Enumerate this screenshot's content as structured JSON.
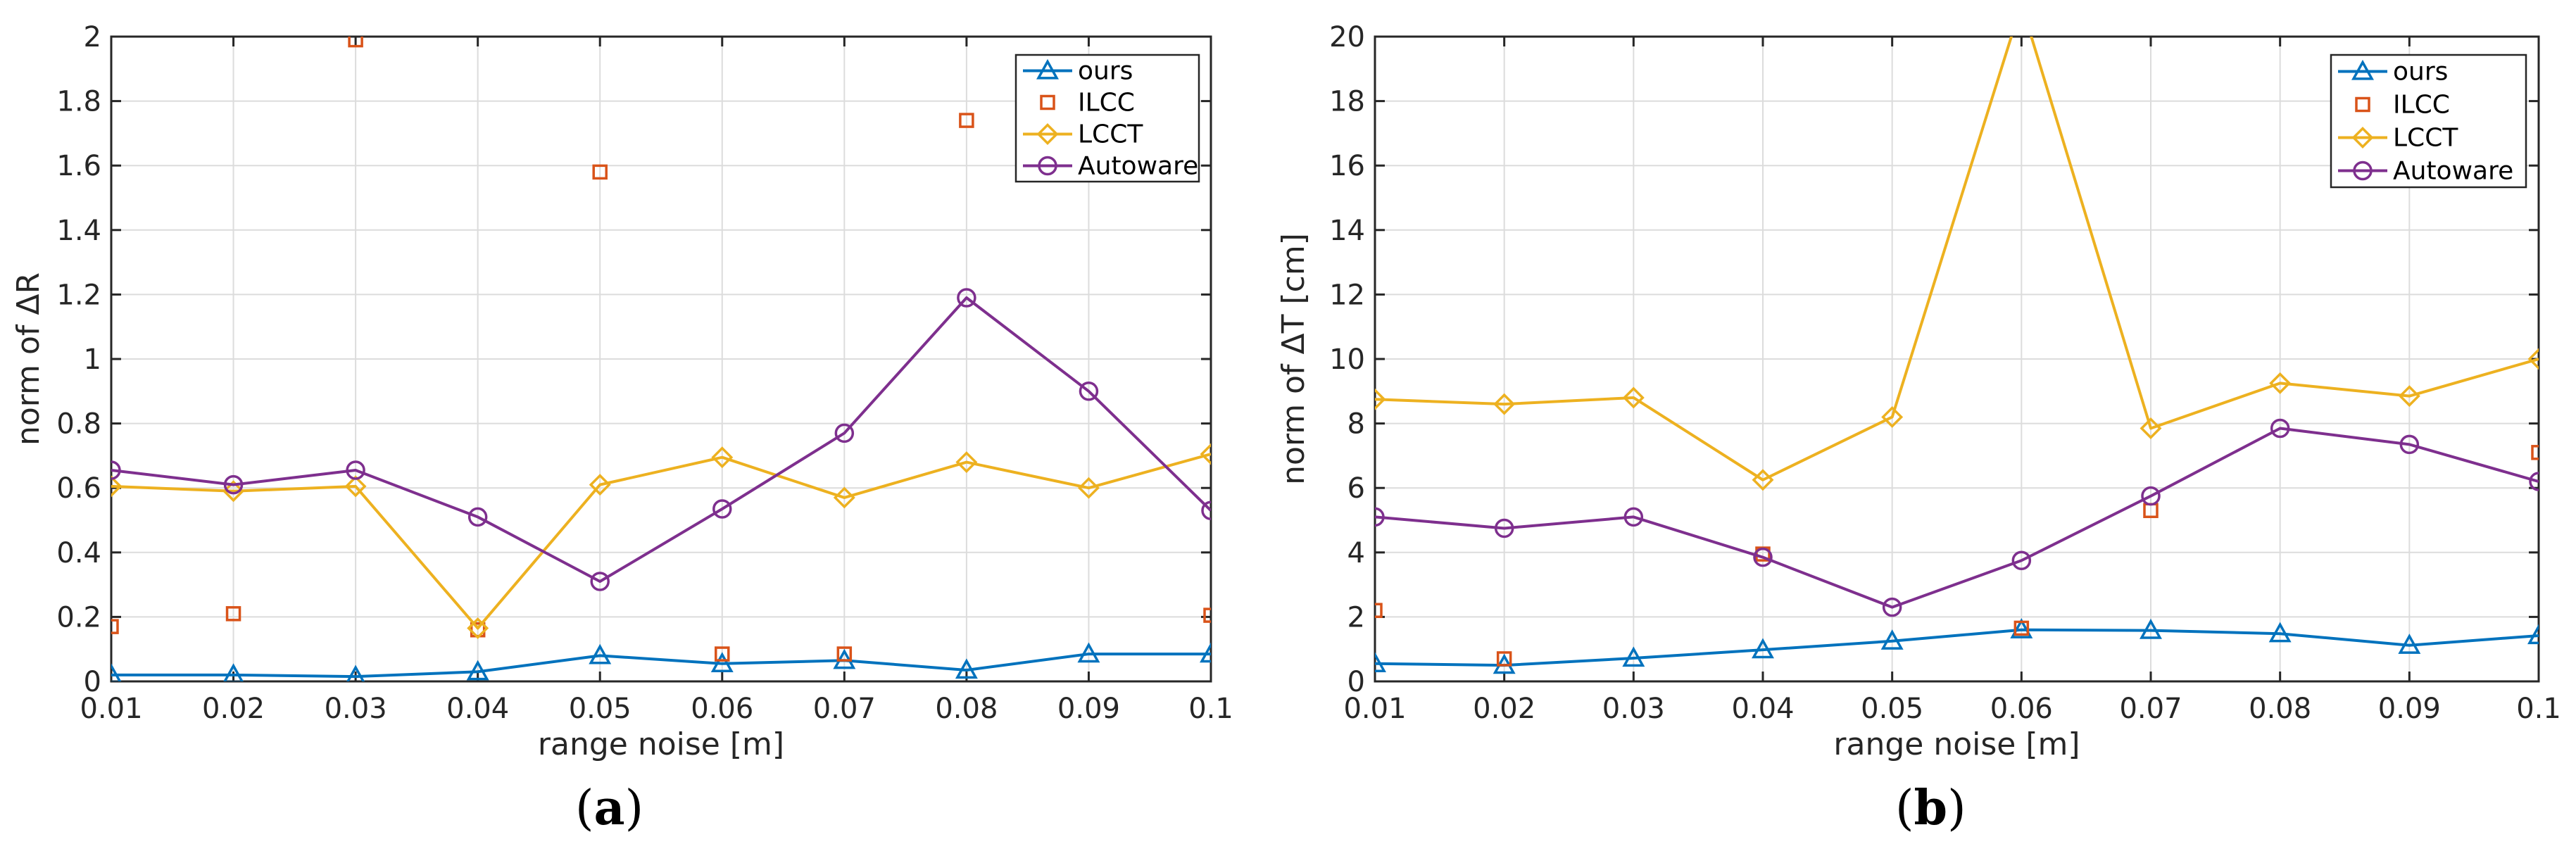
{
  "colors": {
    "ours": "#0072BD",
    "ILCC": "#D95319",
    "LCCT": "#EDB120",
    "Autoware": "#7E2F8E",
    "grid": "#DCDCDC",
    "axis": "#262626"
  },
  "panels": [
    {
      "open": "(",
      "letter": "a",
      "close": ")"
    },
    {
      "open": "(",
      "letter": "b",
      "close": ")"
    }
  ],
  "chart_data": [
    {
      "type": "line",
      "xlabel": "range noise [m]",
      "ylabel": "norm of ΔR",
      "xlim": [
        0.01,
        0.1
      ],
      "ylim": [
        0,
        2
      ],
      "xticks": [
        "0.01",
        "0.02",
        "0.03",
        "0.04",
        "0.05",
        "0.06",
        "0.07",
        "0.08",
        "0.09",
        "0.1"
      ],
      "yticks": [
        "0",
        "0.2",
        "0.4",
        "0.6",
        "0.8",
        "1",
        "1.2",
        "1.4",
        "1.6",
        "1.8",
        "2"
      ],
      "legend_position": "top-right",
      "grid": true,
      "x": [
        0.01,
        0.02,
        0.03,
        0.04,
        0.05,
        0.06,
        0.07,
        0.08,
        0.09,
        0.1
      ],
      "series": [
        {
          "name": "ours",
          "marker": "triangle",
          "line": true,
          "values": [
            0.02,
            0.02,
            0.015,
            0.03,
            0.08,
            0.055,
            0.065,
            0.035,
            0.085,
            0.085
          ]
        },
        {
          "name": "ILCC",
          "marker": "square",
          "line": false,
          "values": [
            0.17,
            0.21,
            1.99,
            0.16,
            1.58,
            0.085,
            0.085,
            1.74,
            null,
            0.205
          ]
        },
        {
          "name": "LCCT",
          "marker": "diamond",
          "line": true,
          "values": [
            0.605,
            0.59,
            0.605,
            0.165,
            0.61,
            0.695,
            0.57,
            0.68,
            0.6,
            0.705
          ]
        },
        {
          "name": "Autoware",
          "marker": "circle",
          "line": true,
          "values": [
            0.655,
            0.61,
            0.655,
            0.51,
            0.31,
            0.535,
            0.77,
            1.19,
            0.9,
            0.53
          ]
        }
      ]
    },
    {
      "type": "line",
      "xlabel": "range noise [m]",
      "ylabel": "norm of ΔT [cm]",
      "xlim": [
        0.01,
        0.1
      ],
      "ylim": [
        0,
        20
      ],
      "xticks": [
        "0.01",
        "0.02",
        "0.03",
        "0.04",
        "0.05",
        "0.06",
        "0.07",
        "0.08",
        "0.09",
        "0.1"
      ],
      "yticks": [
        "0",
        "2",
        "4",
        "6",
        "8",
        "10",
        "12",
        "14",
        "16",
        "18",
        "20"
      ],
      "legend_position": "top-right",
      "grid": true,
      "x": [
        0.01,
        0.02,
        0.03,
        0.04,
        0.05,
        0.06,
        0.07,
        0.08,
        0.09,
        0.1
      ],
      "series": [
        {
          "name": "ours",
          "marker": "triangle",
          "line": true,
          "values": [
            0.55,
            0.5,
            0.72,
            0.98,
            1.25,
            1.6,
            1.58,
            1.48,
            1.12,
            1.42
          ]
        },
        {
          "name": "ILCC",
          "marker": "square",
          "line": false,
          "values": [
            2.2,
            0.7,
            null,
            3.95,
            null,
            1.65,
            5.3,
            null,
            null,
            7.1
          ]
        },
        {
          "name": "LCCT",
          "marker": "diamond",
          "line": true,
          "values": [
            8.75,
            8.6,
            8.8,
            6.25,
            8.2,
            21.0,
            7.85,
            9.25,
            8.85,
            10.0
          ]
        },
        {
          "name": "Autoware",
          "marker": "circle",
          "line": true,
          "values": [
            5.1,
            4.75,
            5.1,
            3.85,
            2.3,
            3.75,
            5.75,
            7.85,
            7.35,
            6.2
          ]
        }
      ]
    }
  ]
}
